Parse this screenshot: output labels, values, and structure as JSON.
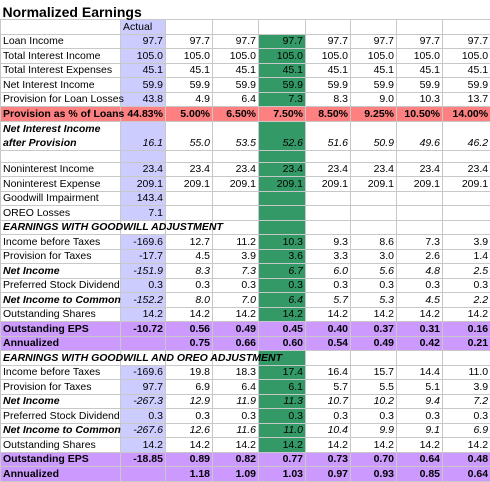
{
  "title": "Normalized Earnings",
  "header": {
    "actual": "Actual"
  },
  "rows": [
    {
      "label": "Loan Income",
      "actual": "97.7",
      "values": [
        "97.7",
        "97.7",
        "97.7",
        "97.7",
        "97.7",
        "97.7",
        "97.7"
      ]
    },
    {
      "label": "Total Interest Income",
      "actual": "105.0",
      "values": [
        "105.0",
        "105.0",
        "105.0",
        "105.0",
        "105.0",
        "105.0",
        "105.0"
      ]
    },
    {
      "label": "Total Interest Expenses",
      "actual": "45.1",
      "values": [
        "45.1",
        "45.1",
        "45.1",
        "45.1",
        "45.1",
        "45.1",
        "45.1"
      ]
    },
    {
      "label": "Net Interest Income",
      "actual": "59.9",
      "values": [
        "59.9",
        "59.9",
        "59.9",
        "59.9",
        "59.9",
        "59.9",
        "59.9"
      ]
    },
    {
      "label": "Provision for Loan Losses",
      "actual": "43.8",
      "values": [
        "4.9",
        "6.4",
        "7.3",
        "8.3",
        "9.0",
        "10.3",
        "13.7"
      ]
    },
    {
      "label": "Provision as % of Loans",
      "actual": "44.83%",
      "values": [
        "5.00%",
        "6.50%",
        "7.50%",
        "8.50%",
        "9.25%",
        "10.50%",
        "14.00%"
      ]
    },
    {
      "label": "Net Interest Income after Provision",
      "actual": "16.1",
      "values": [
        "55.0",
        "53.5",
        "52.6",
        "51.6",
        "50.9",
        "49.6",
        "46.2"
      ]
    },
    {},
    {
      "label": "Noninterest Income",
      "actual": "23.4",
      "values": [
        "23.4",
        "23.4",
        "23.4",
        "23.4",
        "23.4",
        "23.4",
        "23.4"
      ]
    },
    {
      "label": "Noninterest Expense",
      "actual": "209.1",
      "values": [
        "209.1",
        "209.1",
        "209.1",
        "209.1",
        "209.1",
        "209.1",
        "209.1"
      ]
    },
    {
      "label": "Goodwill Impairment",
      "actual": "143.4"
    },
    {
      "label": "OREO Losses",
      "actual": "7.1"
    },
    {
      "label": "EARNINGS WITH GOODWILL ADJUSTMENT"
    },
    {
      "label": "Income before Taxes",
      "actual": "-169.6",
      "values": [
        "12.7",
        "11.2",
        "10.3",
        "9.3",
        "8.6",
        "7.3",
        "3.9"
      ]
    },
    {
      "label": "Provision for Taxes",
      "actual": "-17.7",
      "values": [
        "4.5",
        "3.9",
        "3.6",
        "3.3",
        "3.0",
        "2.6",
        "1.4"
      ]
    },
    {
      "label": "Net Income",
      "actual": "-151.9",
      "values": [
        "8.3",
        "7.3",
        "6.7",
        "6.0",
        "5.6",
        "4.8",
        "2.5"
      ]
    },
    {
      "label": "Preferred Stock Dividend",
      "actual": "0.3",
      "values": [
        "0.3",
        "0.3",
        "0.3",
        "0.3",
        "0.3",
        "0.3",
        "0.3"
      ]
    },
    {
      "label": "Net Income to Common",
      "actual": "-152.2",
      "values": [
        "8.0",
        "7.0",
        "6.4",
        "5.7",
        "5.3",
        "4.5",
        "2.2"
      ]
    },
    {
      "label": "Outstanding Shares",
      "actual": "14.2",
      "values": [
        "14.2",
        "14.2",
        "14.2",
        "14.2",
        "14.2",
        "14.2",
        "14.2"
      ]
    },
    {
      "label": "Outstanding EPS",
      "actual": "-10.72",
      "values": [
        "0.56",
        "0.49",
        "0.45",
        "0.40",
        "0.37",
        "0.31",
        "0.16"
      ]
    },
    {
      "label": "Annualized",
      "values": [
        "0.75",
        "0.66",
        "0.60",
        "0.54",
        "0.49",
        "0.42",
        "0.21"
      ]
    },
    {
      "label": "EARNINGS WITH GOODWILL AND OREO ADJUSTMENT"
    },
    {
      "label": "Income before Taxes",
      "actual": "-169.6",
      "values": [
        "19.8",
        "18.3",
        "17.4",
        "16.4",
        "15.7",
        "14.4",
        "11.0"
      ]
    },
    {
      "label": "Provision for Taxes",
      "actual": "97.7",
      "values": [
        "6.9",
        "6.4",
        "6.1",
        "5.7",
        "5.5",
        "5.1",
        "3.9"
      ]
    },
    {
      "label": "Net Income",
      "actual": "-267.3",
      "values": [
        "12.9",
        "11.9",
        "11.3",
        "10.7",
        "10.2",
        "9.4",
        "7.2"
      ]
    },
    {
      "label": "Preferred Stock Dividend",
      "actual": "0.3",
      "values": [
        "0.3",
        "0.3",
        "0.3",
        "0.3",
        "0.3",
        "0.3",
        "0.3"
      ]
    },
    {
      "label": "Net Income to Common",
      "actual": "-267.6",
      "values": [
        "12.6",
        "11.6",
        "11.0",
        "10.4",
        "9.9",
        "9.1",
        "6.9"
      ]
    },
    {
      "label": "Outstanding Shares",
      "actual": "14.2",
      "values": [
        "14.2",
        "14.2",
        "14.2",
        "14.2",
        "14.2",
        "14.2",
        "14.2"
      ]
    },
    {
      "label": "Outstanding EPS",
      "actual": "-18.85",
      "values": [
        "0.89",
        "0.82",
        "0.77",
        "0.73",
        "0.70",
        "0.64",
        "0.48"
      ]
    },
    {
      "label": "Annualized",
      "values": [
        "1.18",
        "1.09",
        "1.03",
        "0.97",
        "0.93",
        "0.85",
        "0.64"
      ]
    }
  ]
}
